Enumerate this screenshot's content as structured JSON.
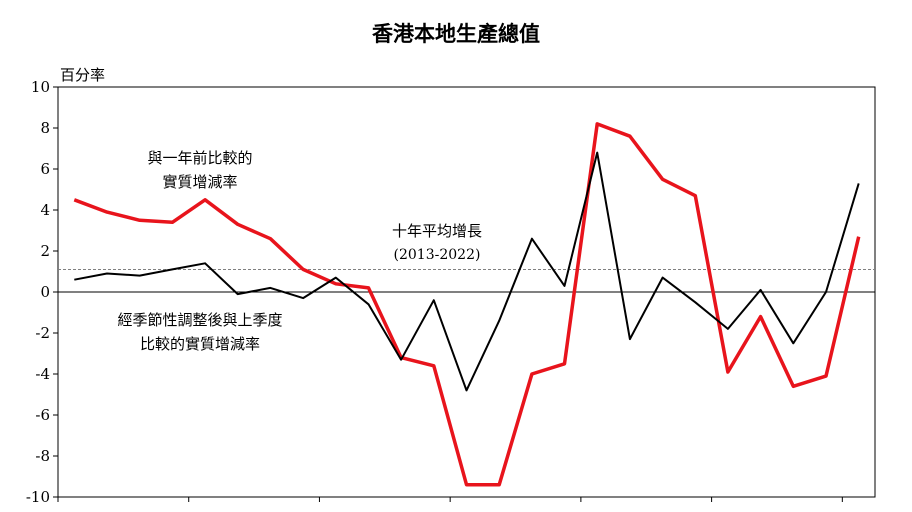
{
  "chart_data": {
    "type": "line",
    "title": "香港本地生產總值",
    "ylabel": "百分率",
    "ylim": [
      -10,
      10
    ],
    "yticks": [
      10,
      8,
      6,
      4,
      2,
      0,
      -2,
      -4,
      -6,
      -8,
      -10
    ],
    "x": [
      1,
      2,
      3,
      4,
      5,
      6,
      7,
      8,
      9,
      10,
      11,
      12,
      13,
      14,
      15,
      16,
      17,
      18,
      19,
      20,
      21,
      22,
      23,
      24,
      25
    ],
    "series": [
      {
        "name": "與一年前比較的實質增減率",
        "color": "#e8141c",
        "values": [
          4.5,
          3.9,
          3.5,
          3.4,
          4.5,
          3.3,
          2.6,
          1.1,
          0.4,
          0.2,
          -3.2,
          -3.6,
          -9.4,
          -9.4,
          -4.0,
          -3.5,
          8.2,
          7.6,
          5.5,
          4.7,
          -3.9,
          -1.2,
          -4.6,
          -4.1,
          2.7
        ]
      },
      {
        "name": "經季節性調整後與上季度比較的實質增減率",
        "color": "#000000",
        "values": [
          0.6,
          0.9,
          0.8,
          1.1,
          1.4,
          -0.1,
          0.2,
          -0.3,
          0.7,
          -0.6,
          -3.3,
          -0.4,
          -4.8,
          -1.4,
          2.6,
          0.3,
          6.8,
          -2.3,
          0.7,
          -0.5,
          -1.8,
          0.1,
          -2.5,
          0.0,
          5.3
        ]
      }
    ],
    "reference_line": {
      "label_line1": "十年平均增長",
      "label_line2": "(2013-2022)",
      "value": 1.1,
      "color": "#808080"
    },
    "annotations": {
      "red_label_line1": "與一年前比較的",
      "red_label_line2": "實質增減率",
      "black_label_line1": "經季節性調整後與上季度",
      "black_label_line2": "比較的實質增減率"
    },
    "grid": false
  }
}
